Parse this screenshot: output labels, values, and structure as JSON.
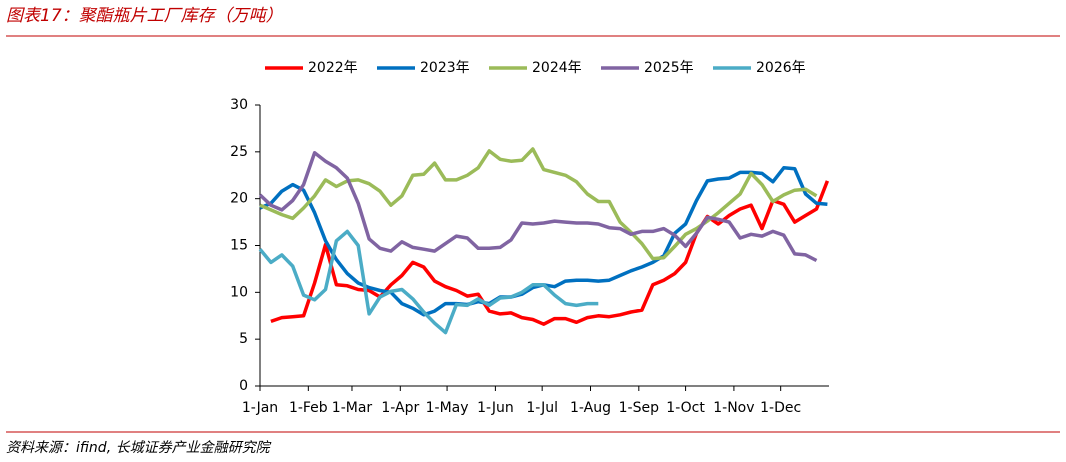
{
  "chart_data": {
    "type": "line",
    "title": "图表17：聚酯瓶片工厂库存（万吨）",
    "source": "资料来源：ifind, 长城证券产业金融研究院",
    "x": [
      1,
      8,
      15,
      22,
      29,
      36,
      43,
      50,
      57,
      64,
      71,
      78,
      85,
      92,
      99,
      106,
      113,
      120,
      127,
      134,
      141,
      148,
      155,
      162,
      169,
      176,
      183,
      190,
      197,
      204,
      211,
      218,
      225,
      232,
      239,
      246,
      253,
      260,
      267,
      274,
      281,
      288,
      295,
      302,
      309,
      316,
      323,
      330,
      337,
      344,
      351,
      358,
      365
    ],
    "xlim": [
      1,
      366
    ],
    "xticks": [
      {
        "value": 1,
        "label": "1-Jan"
      },
      {
        "value": 32,
        "label": "1-Feb"
      },
      {
        "value": 60,
        "label": "1-Mar"
      },
      {
        "value": 91,
        "label": "1-Apr"
      },
      {
        "value": 121,
        "label": "1-May"
      },
      {
        "value": 152,
        "label": "1-Jun"
      },
      {
        "value": 182,
        "label": "1-Jul"
      },
      {
        "value": 213,
        "label": "1-Aug"
      },
      {
        "value": 244,
        "label": "1-Sep"
      },
      {
        "value": 274,
        "label": "1-Oct"
      },
      {
        "value": 305,
        "label": "1-Nov"
      },
      {
        "value": 335,
        "label": "1-Dec"
      }
    ],
    "ylim": [
      0,
      30
    ],
    "yticks": [
      0,
      5,
      10,
      15,
      20,
      25,
      30
    ],
    "legend": "top",
    "series": [
      {
        "name": "2022年",
        "color": "#ff0000",
        "values": [
          null,
          6.9,
          7.3,
          7.4,
          7.5,
          11.0,
          15.1,
          10.8,
          10.7,
          10.3,
          10.2,
          9.5,
          10.8,
          11.8,
          13.2,
          12.7,
          11.2,
          10.6,
          10.2,
          9.6,
          9.8,
          8.0,
          7.7,
          7.8,
          7.3,
          7.1,
          6.6,
          7.2,
          7.2,
          6.8,
          7.3,
          7.5,
          7.4,
          7.6,
          7.9,
          8.1,
          10.8,
          11.3,
          12.0,
          13.2,
          16.3,
          18.1,
          17.3,
          18.2,
          18.9,
          19.3,
          16.8,
          19.8,
          19.4,
          17.5,
          18.2,
          18.9,
          21.9
        ]
      },
      {
        "name": "2023年",
        "color": "#0070c0",
        "values": [
          19.0,
          19.5,
          20.8,
          21.5,
          20.9,
          18.5,
          15.5,
          13.5,
          12.0,
          11.0,
          10.5,
          10.2,
          10.0,
          8.8,
          8.3,
          7.6,
          8.0,
          8.8,
          8.8,
          8.7,
          9.0,
          8.8,
          9.5,
          9.5,
          9.8,
          10.5,
          10.8,
          10.6,
          11.2,
          11.3,
          11.3,
          11.2,
          11.3,
          11.8,
          12.3,
          12.7,
          13.2,
          13.9,
          16.3,
          17.3,
          19.8,
          21.9,
          22.1,
          22.2,
          22.8,
          22.8,
          22.7,
          21.8,
          23.3,
          23.2,
          20.5,
          19.5,
          19.4
        ]
      },
      {
        "name": "2024年",
        "color": "#9bbb59",
        "values": [
          19.3,
          18.8,
          18.3,
          17.9,
          19.0,
          20.3,
          22.0,
          21.3,
          21.9,
          22.0,
          21.6,
          20.8,
          19.3,
          20.3,
          22.5,
          22.6,
          23.8,
          22.0,
          22.0,
          22.5,
          23.3,
          25.1,
          24.2,
          24.0,
          24.1,
          25.3,
          23.1,
          22.8,
          22.5,
          21.8,
          20.5,
          19.7,
          19.7,
          17.5,
          16.4,
          15.2,
          13.6,
          13.7,
          14.9,
          16.2,
          16.8,
          17.6,
          18.5,
          19.5,
          20.5,
          22.7,
          21.5,
          19.7,
          20.4,
          20.9,
          21.0,
          20.3,
          null
        ]
      },
      {
        "name": "2025年",
        "color": "#8064a2",
        "values": [
          20.4,
          19.3,
          18.8,
          19.8,
          21.5,
          24.9,
          24.0,
          23.3,
          22.2,
          19.5,
          15.7,
          14.7,
          14.4,
          15.4,
          14.8,
          14.6,
          14.4,
          15.2,
          16.0,
          15.8,
          14.7,
          14.7,
          14.8,
          15.6,
          17.4,
          17.3,
          17.4,
          17.6,
          17.5,
          17.4,
          17.4,
          17.3,
          16.9,
          16.8,
          16.2,
          16.5,
          16.5,
          16.8,
          16.1,
          14.9,
          16.3,
          18.0,
          17.8,
          17.5,
          15.8,
          16.2,
          16.0,
          16.5,
          16.1,
          14.1,
          14.0,
          13.4,
          null
        ]
      },
      {
        "name": "2026年",
        "color": "#4bacc6",
        "values": [
          14.6,
          13.2,
          14.0,
          12.8,
          9.7,
          9.2,
          10.3,
          15.5,
          16.5,
          15.0,
          7.7,
          9.5,
          10.1,
          10.3,
          9.3,
          7.9,
          6.7,
          5.7,
          8.7,
          8.6,
          9.3,
          8.6,
          9.4,
          9.5,
          10.0,
          10.8,
          10.8,
          9.7,
          8.8,
          8.6,
          8.8,
          8.8,
          null,
          null,
          null,
          null,
          null,
          null,
          null,
          null,
          null,
          null,
          null,
          null,
          null,
          null,
          null,
          null,
          null,
          null,
          null,
          null,
          null
        ]
      }
    ]
  }
}
